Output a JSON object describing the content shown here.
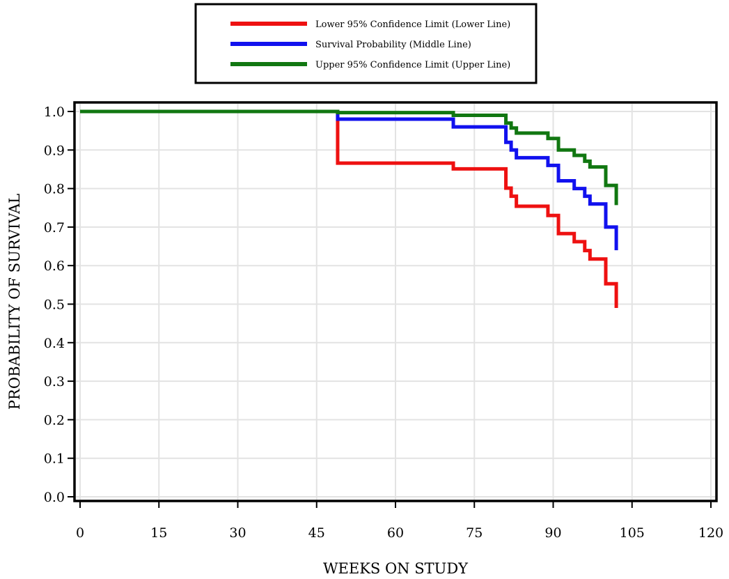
{
  "chart_data": {
    "type": "line",
    "title": "",
    "xlabel": "WEEKS ON STUDY",
    "ylabel": "PROBABILITY OF SURVIVAL",
    "xlim": [
      0,
      120
    ],
    "ylim": [
      0,
      1.0
    ],
    "x_ticks": [
      "0",
      "15",
      "30",
      "45",
      "60",
      "75",
      "90",
      "105",
      "120"
    ],
    "y_ticks": [
      "0.0",
      "0.1",
      "0.2",
      "0.3",
      "0.4",
      "0.5",
      "0.6",
      "0.7",
      "0.8",
      "0.9",
      "1.0"
    ],
    "grid": true,
    "legend_position": "top-center",
    "step": true,
    "series": [
      {
        "name": "Lower 95% Confidence Limit (Lower Line)",
        "color": "#ee1111",
        "points": [
          [
            0,
            1.0
          ],
          [
            49,
            1.0
          ],
          [
            49,
            0.866
          ],
          [
            71,
            0.866
          ],
          [
            71,
            0.851
          ],
          [
            81,
            0.851
          ],
          [
            81,
            0.801
          ],
          [
            82,
            0.801
          ],
          [
            82,
            0.78
          ],
          [
            83,
            0.78
          ],
          [
            83,
            0.754
          ],
          [
            89,
            0.754
          ],
          [
            89,
            0.73
          ],
          [
            91,
            0.73
          ],
          [
            91,
            0.683
          ],
          [
            94,
            0.683
          ],
          [
            94,
            0.662
          ],
          [
            96,
            0.662
          ],
          [
            96,
            0.639
          ],
          [
            97,
            0.639
          ],
          [
            97,
            0.617
          ],
          [
            100,
            0.617
          ],
          [
            100,
            0.553
          ],
          [
            102,
            0.553
          ],
          [
            102,
            0.49
          ]
        ]
      },
      {
        "name": "Survival Probability (Middle Line)",
        "color": "#1111ee",
        "points": [
          [
            0,
            1.0
          ],
          [
            49,
            1.0
          ],
          [
            49,
            0.98
          ],
          [
            71,
            0.98
          ],
          [
            71,
            0.96
          ],
          [
            81,
            0.96
          ],
          [
            81,
            0.92
          ],
          [
            82,
            0.92
          ],
          [
            82,
            0.9
          ],
          [
            83,
            0.9
          ],
          [
            83,
            0.88
          ],
          [
            89,
            0.88
          ],
          [
            89,
            0.86
          ],
          [
            91,
            0.86
          ],
          [
            91,
            0.82
          ],
          [
            94,
            0.82
          ],
          [
            94,
            0.8
          ],
          [
            96,
            0.8
          ],
          [
            96,
            0.78
          ],
          [
            97,
            0.78
          ],
          [
            97,
            0.76
          ],
          [
            100,
            0.76
          ],
          [
            100,
            0.7
          ],
          [
            102,
            0.7
          ],
          [
            102,
            0.64
          ]
        ]
      },
      {
        "name": "Upper 95% Confidence Limit (Upper Line)",
        "color": "#117711",
        "points": [
          [
            0,
            1.0
          ],
          [
            49,
            1.0
          ],
          [
            49,
            0.997
          ],
          [
            71,
            0.997
          ],
          [
            71,
            0.99
          ],
          [
            81,
            0.99
          ],
          [
            81,
            0.97
          ],
          [
            82,
            0.97
          ],
          [
            82,
            0.957
          ],
          [
            83,
            0.957
          ],
          [
            83,
            0.944
          ],
          [
            89,
            0.944
          ],
          [
            89,
            0.93
          ],
          [
            91,
            0.93
          ],
          [
            91,
            0.9
          ],
          [
            94,
            0.9
          ],
          [
            94,
            0.886
          ],
          [
            96,
            0.886
          ],
          [
            96,
            0.871
          ],
          [
            97,
            0.871
          ],
          [
            97,
            0.856
          ],
          [
            100,
            0.856
          ],
          [
            100,
            0.808
          ],
          [
            102,
            0.808
          ],
          [
            102,
            0.757
          ]
        ]
      }
    ]
  }
}
